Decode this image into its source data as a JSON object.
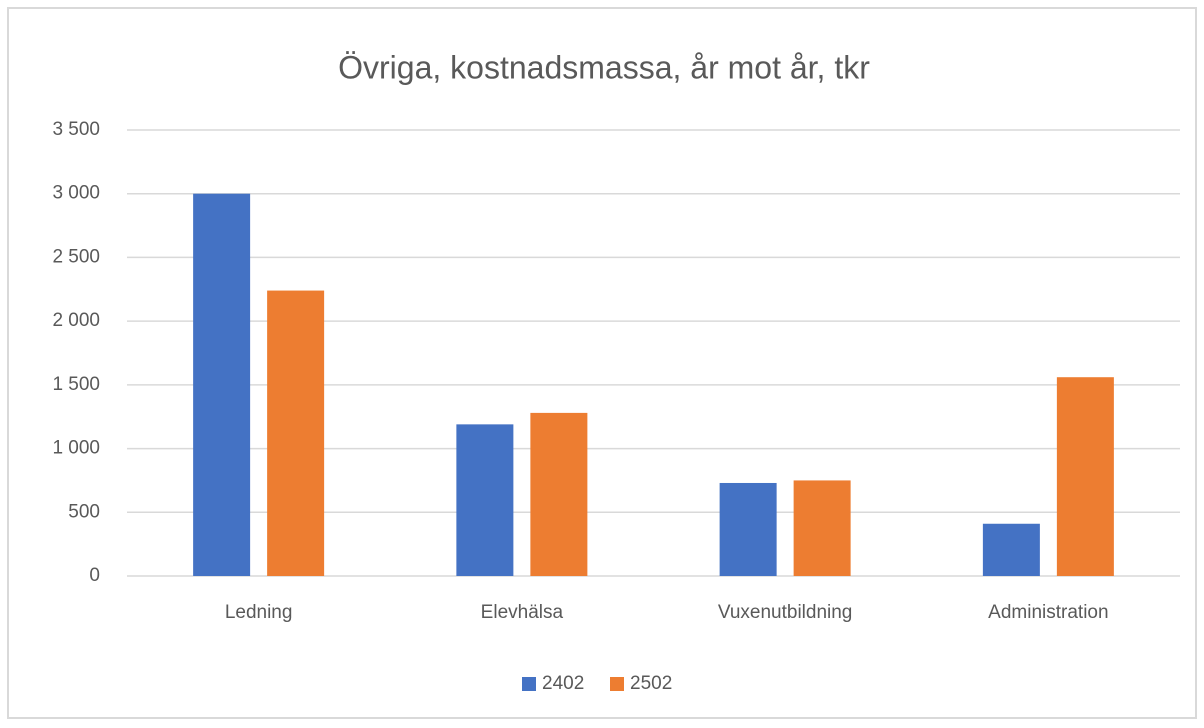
{
  "chart_data": {
    "type": "bar",
    "title": "Övriga, kostnadsmassa, år mot år, tkr",
    "categories": [
      "Ledning",
      "Elevhälsa",
      "Vuxenutbildning",
      "Administration"
    ],
    "series": [
      {
        "name": "2402",
        "color": "#4472c4",
        "values": [
          3000,
          1190,
          730,
          410
        ]
      },
      {
        "name": "2502",
        "color": "#ed7d31",
        "values": [
          2240,
          1280,
          750,
          1560
        ]
      }
    ],
    "ylim": [
      0,
      3500
    ],
    "yticks": [
      0,
      500,
      {
        "value": 1000,
        "label": "1 000"
      },
      {
        "value": 1500,
        "label": "1 500"
      },
      {
        "value": 2000,
        "label": "2 000"
      },
      {
        "value": 2500,
        "label": "2 500"
      },
      {
        "value": 3000,
        "label": "3 000"
      },
      {
        "value": 3500,
        "label": "3 500"
      }
    ],
    "grid": true,
    "legend": "bottom"
  }
}
